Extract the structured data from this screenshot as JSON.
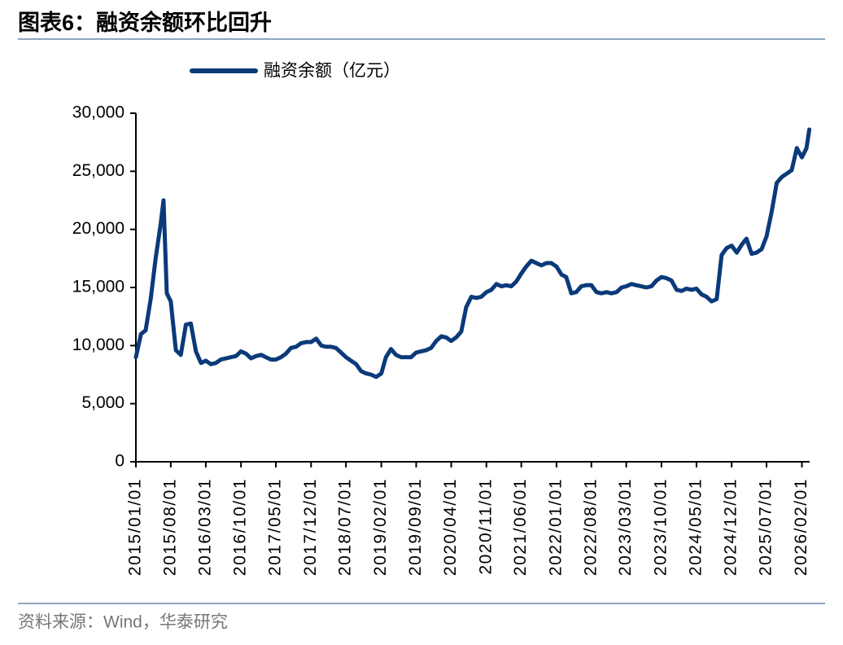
{
  "chart_data": {
    "type": "line",
    "title": "图表6：融资余额环比回升",
    "source": "资料来源：Wind，华泰研究",
    "legend": "top",
    "grid": false,
    "x": [
      "2015/01/01",
      "2015/02/01",
      "2015/03/01",
      "2015/04/01",
      "2015/05/01",
      "2015/06/01",
      "2015/06/18",
      "2015/07/08",
      "2015/08/01",
      "2015/09/01",
      "2015/10/01",
      "2015/11/01",
      "2015/12/01",
      "2016/01/01",
      "2016/02/01",
      "2016/03/01",
      "2016/04/01",
      "2016/05/01",
      "2016/06/01",
      "2016/07/01",
      "2016/08/01",
      "2016/09/01",
      "2016/10/01",
      "2016/11/01",
      "2016/12/01",
      "2017/01/01",
      "2017/02/01",
      "2017/03/01",
      "2017/04/01",
      "2017/05/01",
      "2017/06/01",
      "2017/07/01",
      "2017/08/01",
      "2017/09/01",
      "2017/10/01",
      "2017/11/01",
      "2017/12/01",
      "2018/01/01",
      "2018/02/01",
      "2018/03/01",
      "2018/04/01",
      "2018/05/01",
      "2018/06/01",
      "2018/07/01",
      "2018/08/01",
      "2018/09/01",
      "2018/10/01",
      "2018/11/01",
      "2018/12/01",
      "2019/01/01",
      "2019/02/01",
      "2019/03/01",
      "2019/04/01",
      "2019/05/01",
      "2019/06/01",
      "2019/07/01",
      "2019/08/01",
      "2019/09/01",
      "2019/10/01",
      "2019/11/01",
      "2019/12/01",
      "2020/01/01",
      "2020/02/01",
      "2020/03/01",
      "2020/04/01",
      "2020/05/01",
      "2020/06/01",
      "2020/07/01",
      "2020/08/01",
      "2020/09/01",
      "2020/10/01",
      "2020/11/01",
      "2020/12/01",
      "2021/01/01",
      "2021/02/01",
      "2021/03/01",
      "2021/04/01",
      "2021/05/01",
      "2021/06/01",
      "2021/07/01",
      "2021/08/01",
      "2021/09/01",
      "2021/10/01",
      "2021/11/01",
      "2021/12/01",
      "2022/01/01",
      "2022/02/01",
      "2022/03/01",
      "2022/04/01",
      "2022/05/01",
      "2022/06/01",
      "2022/07/01",
      "2022/08/01",
      "2022/09/01",
      "2022/10/01",
      "2022/11/01",
      "2022/12/01",
      "2023/01/01",
      "2023/02/01",
      "2023/03/01",
      "2023/04/01",
      "2023/05/01",
      "2023/06/01",
      "2023/07/01",
      "2023/08/01",
      "2023/09/01",
      "2023/10/01",
      "2023/11/01",
      "2023/12/01",
      "2024/01/01",
      "2024/02/01",
      "2024/03/01",
      "2024/04/01",
      "2024/05/01",
      "2024/06/01",
      "2024/07/01",
      "2024/08/01",
      "2024/09/01",
      "2024/10/01",
      "2024/11/01",
      "2024/12/01",
      "2025/01/01",
      "2025/02/01",
      "2025/03/01",
      "2025/04/01",
      "2025/05/01",
      "2025/06/01",
      "2025/07/01",
      "2025/08/01",
      "2025/09/01",
      "2025/10/01",
      "2025/11/01",
      "2025/12/01",
      "2026/01/01",
      "2026/02/01",
      "2026/03/01",
      "2026/03/18"
    ],
    "series": [
      {
        "name": "融资余额（亿元）",
        "color": "#0b3a7a",
        "values": [
          9000,
          11000,
          11300,
          14000,
          17500,
          20500,
          22500,
          14500,
          13800,
          9600,
          9200,
          11800,
          11900,
          9500,
          8500,
          8700,
          8400,
          8500,
          8800,
          8900,
          9000,
          9100,
          9500,
          9300,
          8900,
          9100,
          9200,
          9000,
          8800,
          8800,
          9000,
          9300,
          9800,
          9900,
          10200,
          10300,
          10300,
          10600,
          10000,
          9900,
          9900,
          9800,
          9400,
          9000,
          8700,
          8400,
          7800,
          7600,
          7500,
          7300,
          7600,
          9000,
          9700,
          9200,
          9000,
          9000,
          9000,
          9400,
          9500,
          9600,
          9800,
          10400,
          10800,
          10700,
          10400,
          10700,
          11200,
          13300,
          14200,
          14100,
          14200,
          14600,
          14800,
          15300,
          15100,
          15200,
          15100,
          15500,
          16200,
          16800,
          17300,
          17100,
          16900,
          17100,
          17100,
          16800,
          16100,
          15900,
          14500,
          14600,
          15100,
          15200,
          15200,
          14600,
          14500,
          14600,
          14500,
          14600,
          15000,
          15100,
          15300,
          15200,
          15100,
          15000,
          15100,
          15600,
          15900,
          15800,
          15600,
          14800,
          14700,
          14900,
          14800,
          14900,
          14400,
          14200,
          13800,
          14000,
          17800,
          18400,
          18600,
          18000,
          18700,
          19200,
          17900,
          18000,
          18300,
          19400,
          21500,
          24000,
          24500,
          24800,
          25100,
          27000,
          26200,
          27000,
          28600
        ]
      }
    ],
    "xlim": [
      "2015/01/01",
      "2026/03/20"
    ],
    "xticks": [
      "2015/01/01",
      "2015/08/01",
      "2016/03/01",
      "2016/10/01",
      "2017/05/01",
      "2017/12/01",
      "2018/07/01",
      "2019/02/01",
      "2019/09/01",
      "2020/04/01",
      "2020/11/01",
      "2021/06/01",
      "2022/01/01",
      "2022/08/01",
      "2023/03/01",
      "2023/10/01",
      "2024/05/01",
      "2024/12/01",
      "2025/07/01",
      "2026/02/01"
    ],
    "ylim": [
      0,
      30000
    ],
    "yticks": [
      0,
      {
        "value": 5000,
        "label": "5,000"
      },
      {
        "value": 10000,
        "label": "10,000"
      },
      {
        "value": 15000,
        "label": "15,000"
      },
      {
        "value": 20000,
        "label": "20,000"
      },
      {
        "value": 25000,
        "label": "25,000"
      },
      {
        "value": 30000,
        "label": "30,000"
      }
    ]
  }
}
